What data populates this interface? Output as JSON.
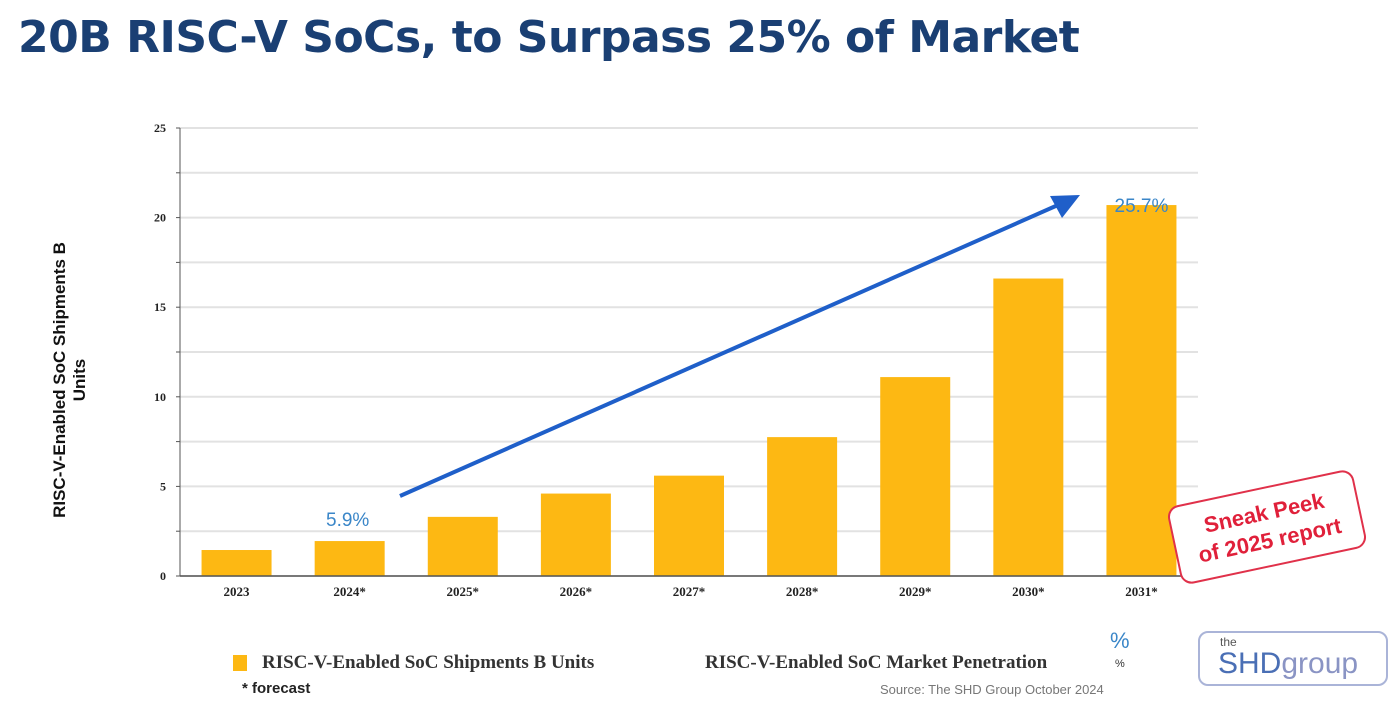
{
  "title": "20B RISC-V SoCs, to Surpass 25% of Market",
  "chart_data": {
    "type": "bar",
    "categories": [
      "2023",
      "2024*",
      "2025*",
      "2026*",
      "2027*",
      "2028*",
      "2029*",
      "2030*",
      "2031*"
    ],
    "values": [
      1.45,
      1.95,
      3.3,
      4.6,
      5.6,
      7.75,
      11.1,
      16.6,
      20.7
    ],
    "ylabel": "RISC-V-Enabled SoC Shipments B Units",
    "ylim": [
      0,
      25
    ],
    "yticks": [
      0,
      5,
      10,
      15,
      20,
      25
    ],
    "grid": true,
    "bar_color": "#fdb813",
    "annotations": {
      "start": "5.9%",
      "end": "25.7%",
      "arrow_color": "#1f5fc9"
    },
    "legend": {
      "series": "RISC-V-Enabled SoC Shipments B Units",
      "penetration": "RISC-V-Enabled SoC Market Penetration",
      "pct_symbol": "%",
      "pct_small": "%",
      "placement": "bottom"
    }
  },
  "footnote": "* forecast",
  "source": "Source: The SHD Group October 2024",
  "logo": {
    "the": "the",
    "shd": "SHD",
    "group": "group"
  },
  "stamp": {
    "line1": "Sneak Peek",
    "line2": "of 2025 report"
  }
}
